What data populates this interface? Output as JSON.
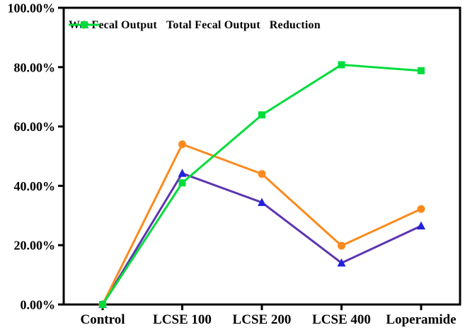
{
  "chart_data": {
    "type": "line",
    "title": "",
    "xlabel": "",
    "ylabel": "",
    "categories": [
      "Control",
      "LCSE 100",
      "LCSE 200",
      "LCSE 400",
      "Loperamide"
    ],
    "series": [
      {
        "name": "Wet Fecal Output",
        "marker": "triangle",
        "line_color": "#5c35b0",
        "marker_color": "#2121e0",
        "values": [
          0,
          44.2,
          34.4,
          14.0,
          26.5
        ]
      },
      {
        "name": "Total Fecal Output",
        "marker": "circle",
        "line_color": "#fb8a1e",
        "marker_color": "#fb8a1e",
        "values": [
          0,
          54.0,
          44.0,
          19.8,
          32.2
        ]
      },
      {
        "name": "Reduction",
        "marker": "square",
        "line_color": "#00dc3c",
        "marker_color": "#00dc3c",
        "values": [
          0,
          41.0,
          63.9,
          80.8,
          78.8
        ]
      }
    ],
    "ylim": [
      0,
      100
    ],
    "y_ticks": [
      0,
      20,
      40,
      60,
      80,
      100
    ],
    "y_tick_labels": [
      "0.00%",
      "20.00%",
      "40.00%",
      "60.00%",
      "80.00%",
      "100.00%"
    ],
    "legend_position": "top-inside",
    "grid": false,
    "axis_color": "#000000"
  }
}
